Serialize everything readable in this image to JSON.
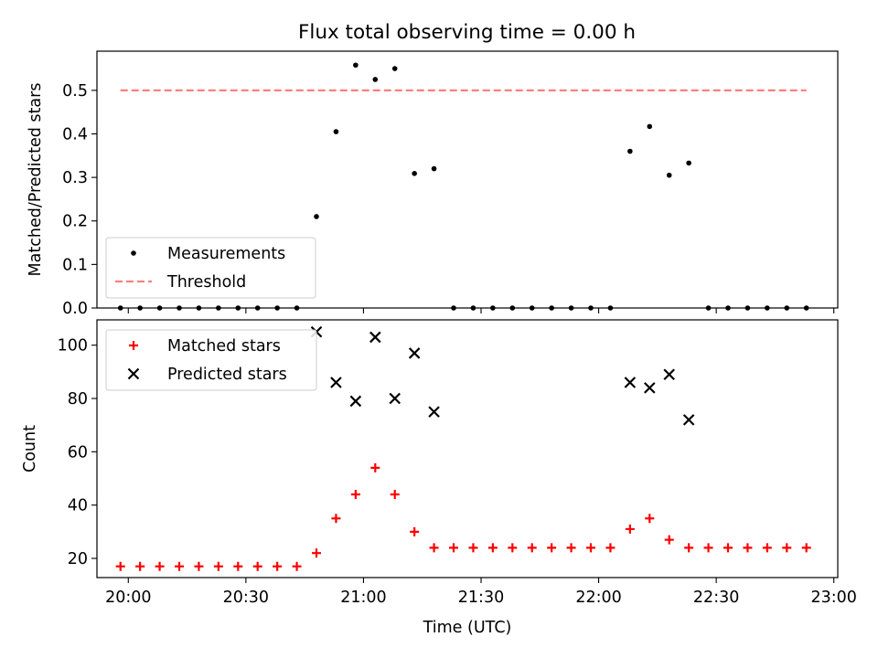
{
  "figure": {
    "title": "Flux total observing time = 0.00 h"
  },
  "chart_data": [
    {
      "type": "scatter",
      "title": "Flux total observing time = 0.00 h",
      "xlabel": "",
      "ylabel": "Matched/Predicted stars",
      "xlim": [
        "19:52",
        "23:01"
      ],
      "ylim": [
        0,
        0.59
      ],
      "xticks": [
        "20:00",
        "20:30",
        "21:00",
        "21:30",
        "22:00",
        "22:30",
        "23:00"
      ],
      "yticks": [
        "0.0",
        "0.1",
        "0.2",
        "0.3",
        "0.4",
        "0.5"
      ],
      "legend_position": "lower-left",
      "series": [
        {
          "name": "Measurements",
          "marker": "dot",
          "color": "#000000",
          "x": [
            "19:58",
            "20:03",
            "20:08",
            "20:13",
            "20:18",
            "20:23",
            "20:28",
            "20:33",
            "20:38",
            "20:43",
            "20:48",
            "20:53",
            "20:58",
            "21:03",
            "21:08",
            "21:13",
            "21:18",
            "21:23",
            "21:28",
            "21:33",
            "21:38",
            "21:43",
            "21:48",
            "21:53",
            "21:58",
            "22:03",
            "22:08",
            "22:13",
            "22:18",
            "22:23",
            "22:28",
            "22:33",
            "22:38",
            "22:43",
            "22:48",
            "22:53"
          ],
          "y": [
            0,
            0,
            0,
            0,
            0,
            0,
            0,
            0,
            0,
            0,
            0.21,
            0.405,
            0.558,
            0.525,
            0.55,
            0.309,
            0.32,
            0,
            0,
            0,
            0,
            0,
            0,
            0,
            0,
            0,
            0.36,
            0.417,
            0.305,
            0.333,
            0,
            0,
            0,
            0,
            0,
            0
          ]
        },
        {
          "name": "Threshold",
          "style": "dashed",
          "color": "#ff7f7f",
          "x": [
            "19:58",
            "22:53"
          ],
          "y": [
            0.5,
            0.5
          ]
        }
      ]
    },
    {
      "type": "scatter",
      "title": "",
      "xlabel": "Time (UTC)",
      "ylabel": "Count",
      "xlim": [
        "19:52",
        "23:01"
      ],
      "ylim": [
        12.8,
        109.5
      ],
      "xticks": [
        "20:00",
        "20:30",
        "21:00",
        "21:30",
        "22:00",
        "22:30",
        "23:00"
      ],
      "yticks": [
        "20",
        "40",
        "60",
        "80",
        "100"
      ],
      "legend_position": "top-left",
      "series": [
        {
          "name": "Matched stars",
          "marker": "plus",
          "color": "#ff0000",
          "x": [
            "19:58",
            "20:03",
            "20:08",
            "20:13",
            "20:18",
            "20:23",
            "20:28",
            "20:33",
            "20:38",
            "20:43",
            "20:48",
            "20:53",
            "20:58",
            "21:03",
            "21:08",
            "21:13",
            "21:18",
            "21:23",
            "21:28",
            "21:33",
            "21:38",
            "21:43",
            "21:48",
            "21:53",
            "21:58",
            "22:03",
            "22:08",
            "22:13",
            "22:18",
            "22:23",
            "22:28",
            "22:33",
            "22:38",
            "22:43",
            "22:48",
            "22:53"
          ],
          "y": [
            17,
            17,
            17,
            17,
            17,
            17,
            17,
            17,
            17,
            17,
            22,
            35,
            44,
            54,
            44,
            30,
            24,
            24,
            24,
            24,
            24,
            24,
            24,
            24,
            24,
            24,
            31,
            35,
            27,
            24,
            24,
            24,
            24,
            24,
            24,
            24
          ]
        },
        {
          "name": "Predicted stars",
          "marker": "x",
          "color": "#000000",
          "x": [
            "20:48",
            "20:53",
            "20:58",
            "21:03",
            "21:08",
            "21:13",
            "21:18",
            "22:08",
            "22:13",
            "22:18",
            "22:23"
          ],
          "y": [
            105,
            86,
            79,
            103,
            80,
            97,
            75,
            86,
            84,
            89,
            72
          ]
        }
      ]
    }
  ]
}
